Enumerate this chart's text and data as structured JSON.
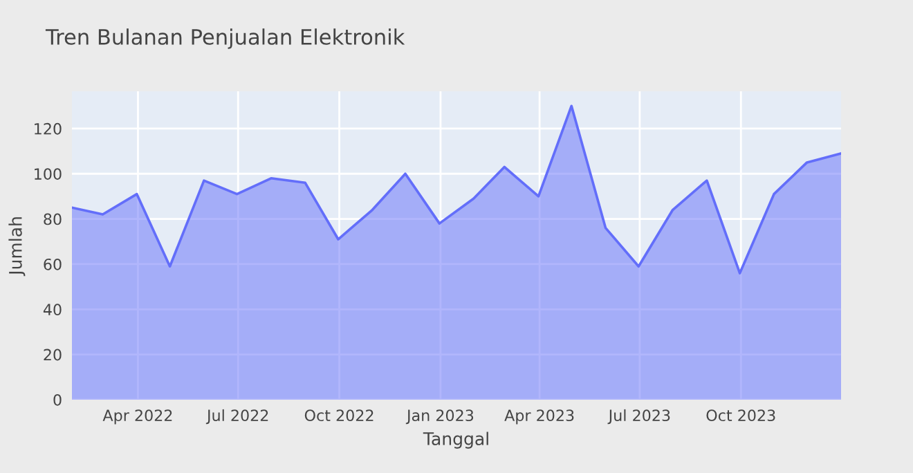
{
  "chart_data": {
    "type": "area",
    "title": "Tren Bulanan Penjualan Elektronik",
    "xlabel": "Tanggal",
    "ylabel": "Jumlah",
    "x": [
      "2022-01-31",
      "2022-02-28",
      "2022-03-31",
      "2022-04-30",
      "2022-05-31",
      "2022-06-30",
      "2022-07-31",
      "2022-08-31",
      "2022-09-30",
      "2022-10-31",
      "2022-11-30",
      "2022-12-31",
      "2023-01-31",
      "2023-02-28",
      "2023-03-31",
      "2023-04-30",
      "2023-05-31",
      "2023-06-30",
      "2023-07-31",
      "2023-08-31",
      "2023-09-30",
      "2023-10-31",
      "2023-11-30",
      "2023-12-31"
    ],
    "series": [
      {
        "color": "#636efa",
        "values": [
          85,
          82,
          91,
          59,
          97,
          91,
          98,
          96,
          71,
          84,
          100,
          78,
          89,
          103,
          90,
          130,
          76,
          59,
          84,
          97,
          56,
          91,
          105,
          109
        ]
      }
    ],
    "xlim": [
      "2022-01-31",
      "2023-12-31"
    ],
    "xticks": [
      {
        "value": "2022-04-01",
        "label": "Apr 2022"
      },
      {
        "value": "2022-07-01",
        "label": "Jul 2022"
      },
      {
        "value": "2022-10-01",
        "label": "Oct 2022"
      },
      {
        "value": "2023-01-01",
        "label": "Jan 2023"
      },
      {
        "value": "2023-04-01",
        "label": "Apr 2023"
      },
      {
        "value": "2023-07-01",
        "label": "Jul 2023"
      },
      {
        "value": "2023-10-01",
        "label": "Oct 2023"
      }
    ],
    "ylim": [
      0,
      136.5
    ],
    "yticks": [
      0,
      20,
      40,
      60,
      80,
      100,
      120
    ],
    "grid": true,
    "legend": false
  }
}
